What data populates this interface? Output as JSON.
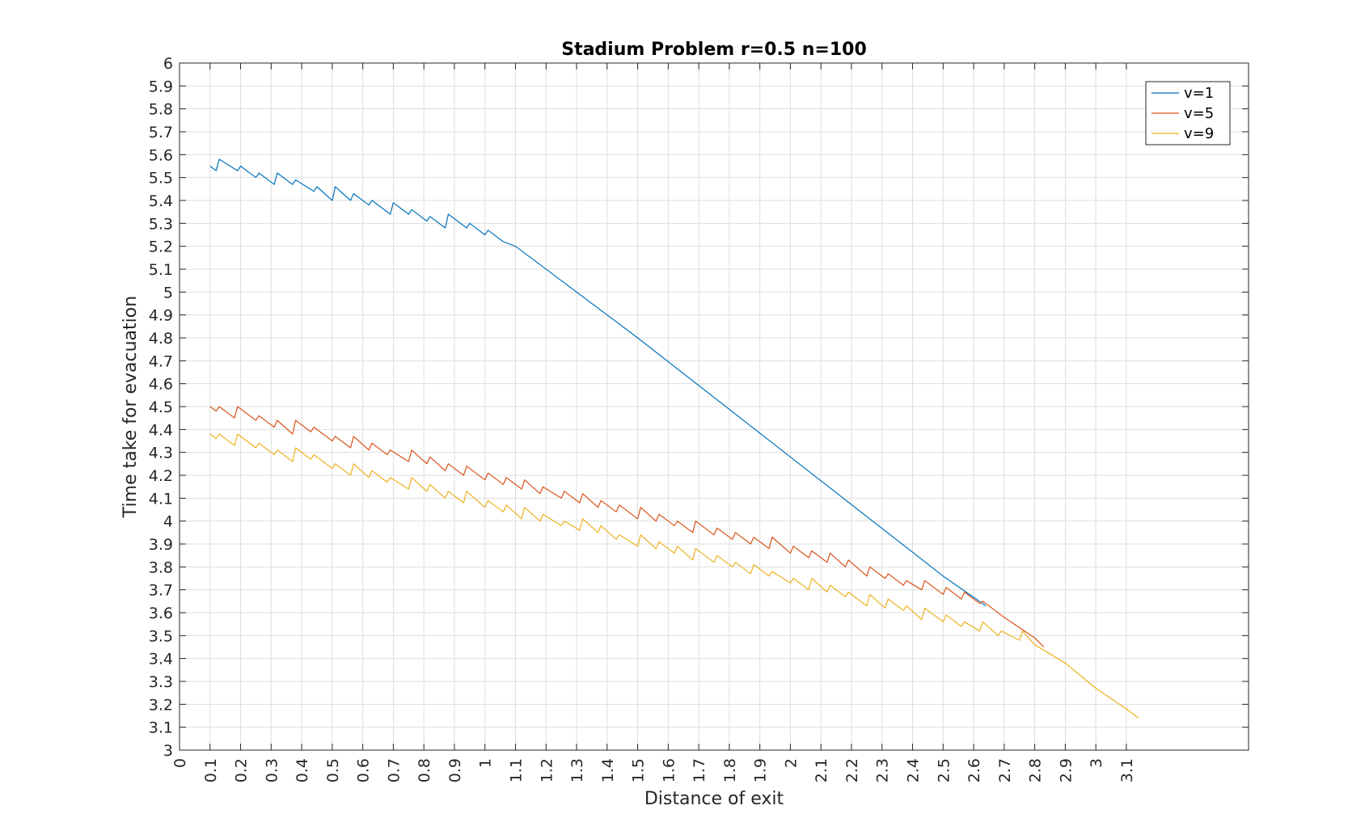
{
  "chart_data": {
    "type": "line",
    "title": "Stadium Problem r=0.5 n=100",
    "xlabel": "Distance of exit",
    "ylabel": "Time take for evacuation",
    "xlim": [
      0,
      3.5
    ],
    "ylim": [
      3,
      6
    ],
    "xticks": [
      "0",
      "0.1",
      "0.2",
      "0.3",
      "0.4",
      "0.5",
      "0.6",
      "0.7",
      "0.8",
      "0.9",
      "1",
      "1.1",
      "1.2",
      "1.3",
      "1.4",
      "1.5",
      "1.6",
      "1.7",
      "1.8",
      "1.9",
      "2",
      "2.1",
      "2.2",
      "2.3",
      "2.4",
      "2.5",
      "2.6",
      "2.7",
      "2.8",
      "2.9",
      "3",
      "3.1"
    ],
    "yticks": [
      "3",
      "3.1",
      "3.2",
      "3.3",
      "3.4",
      "3.5",
      "3.6",
      "3.7",
      "3.8",
      "3.9",
      "4",
      "4.1",
      "4.2",
      "4.3",
      "4.4",
      "4.5",
      "4.6",
      "4.7",
      "4.8",
      "4.9",
      "5",
      "5.1",
      "5.2",
      "5.3",
      "5.4",
      "5.5",
      "5.6",
      "5.7",
      "5.8",
      "5.9",
      "6"
    ],
    "grid": true,
    "legend_position": "top-right",
    "series": [
      {
        "name": "v=1",
        "color": "#0072BD",
        "x": [
          0.1,
          0.12,
          0.13,
          0.19,
          0.2,
          0.25,
          0.26,
          0.31,
          0.32,
          0.37,
          0.38,
          0.44,
          0.45,
          0.5,
          0.51,
          0.56,
          0.57,
          0.62,
          0.63,
          0.69,
          0.7,
          0.75,
          0.76,
          0.81,
          0.82,
          0.87,
          0.88,
          0.94,
          0.95,
          1.0,
          1.01,
          1.06,
          1.1,
          1.5,
          2.0,
          2.5,
          2.64
        ],
        "y": [
          5.55,
          5.53,
          5.58,
          5.53,
          5.55,
          5.5,
          5.52,
          5.47,
          5.52,
          5.47,
          5.49,
          5.44,
          5.46,
          5.4,
          5.46,
          5.4,
          5.43,
          5.38,
          5.4,
          5.34,
          5.39,
          5.34,
          5.36,
          5.31,
          5.33,
          5.28,
          5.34,
          5.28,
          5.3,
          5.25,
          5.27,
          5.22,
          5.2,
          4.8,
          4.28,
          3.76,
          3.63
        ]
      },
      {
        "name": "v=5",
        "color": "#D95319",
        "x": [
          0.1,
          0.12,
          0.13,
          0.18,
          0.19,
          0.25,
          0.26,
          0.31,
          0.32,
          0.37,
          0.38,
          0.43,
          0.44,
          0.5,
          0.51,
          0.56,
          0.57,
          0.62,
          0.63,
          0.68,
          0.69,
          0.75,
          0.76,
          0.81,
          0.82,
          0.87,
          0.88,
          0.93,
          0.94,
          1.0,
          1.01,
          1.06,
          1.07,
          1.12,
          1.13,
          1.18,
          1.19,
          1.25,
          1.26,
          1.31,
          1.32,
          1.37,
          1.38,
          1.43,
          1.44,
          1.5,
          1.51,
          1.56,
          1.57,
          1.62,
          1.63,
          1.68,
          1.69,
          1.75,
          1.76,
          1.81,
          1.82,
          1.87,
          1.88,
          1.93,
          1.94,
          2.0,
          2.01,
          2.06,
          2.07,
          2.12,
          2.13,
          2.18,
          2.19,
          2.25,
          2.26,
          2.31,
          2.32,
          2.37,
          2.38,
          2.43,
          2.44,
          2.5,
          2.51,
          2.56,
          2.57,
          2.62,
          2.63,
          2.7,
          2.8,
          2.83
        ],
        "y": [
          4.5,
          4.48,
          4.5,
          4.45,
          4.5,
          4.44,
          4.46,
          4.41,
          4.44,
          4.38,
          4.44,
          4.39,
          4.41,
          4.35,
          4.37,
          4.32,
          4.37,
          4.31,
          4.34,
          4.29,
          4.31,
          4.26,
          4.31,
          4.25,
          4.28,
          4.22,
          4.25,
          4.2,
          4.24,
          4.18,
          4.21,
          4.16,
          4.19,
          4.14,
          4.18,
          4.12,
          4.15,
          4.1,
          4.13,
          4.08,
          4.12,
          4.06,
          4.09,
          4.04,
          4.07,
          4.01,
          4.06,
          4.0,
          4.03,
          3.98,
          4.0,
          3.95,
          4.0,
          3.94,
          3.97,
          3.92,
          3.95,
          3.9,
          3.93,
          3.88,
          3.93,
          3.86,
          3.89,
          3.84,
          3.87,
          3.82,
          3.86,
          3.8,
          3.83,
          3.76,
          3.8,
          3.75,
          3.77,
          3.72,
          3.74,
          3.7,
          3.74,
          3.68,
          3.71,
          3.66,
          3.69,
          3.64,
          3.65,
          3.58,
          3.49,
          3.45
        ]
      },
      {
        "name": "v=9",
        "color": "#EDB120",
        "x": [
          0.1,
          0.12,
          0.13,
          0.18,
          0.19,
          0.25,
          0.26,
          0.31,
          0.32,
          0.37,
          0.38,
          0.43,
          0.44,
          0.5,
          0.51,
          0.56,
          0.57,
          0.62,
          0.63,
          0.68,
          0.69,
          0.75,
          0.76,
          0.81,
          0.82,
          0.87,
          0.88,
          0.93,
          0.94,
          1.0,
          1.01,
          1.06,
          1.07,
          1.12,
          1.13,
          1.18,
          1.19,
          1.25,
          1.26,
          1.31,
          1.32,
          1.37,
          1.38,
          1.43,
          1.44,
          1.5,
          1.51,
          1.56,
          1.57,
          1.62,
          1.63,
          1.68,
          1.69,
          1.75,
          1.76,
          1.81,
          1.82,
          1.87,
          1.88,
          1.93,
          1.94,
          2.0,
          2.01,
          2.06,
          2.07,
          2.12,
          2.13,
          2.18,
          2.19,
          2.25,
          2.26,
          2.31,
          2.32,
          2.37,
          2.38,
          2.43,
          2.44,
          2.5,
          2.51,
          2.56,
          2.57,
          2.62,
          2.63,
          2.68,
          2.69,
          2.75,
          2.76,
          2.8,
          2.9,
          3.0,
          3.1,
          3.14
        ],
        "y": [
          4.38,
          4.36,
          4.38,
          4.33,
          4.38,
          4.32,
          4.34,
          4.29,
          4.31,
          4.26,
          4.32,
          4.27,
          4.29,
          4.23,
          4.25,
          4.2,
          4.25,
          4.19,
          4.22,
          4.17,
          4.19,
          4.14,
          4.19,
          4.13,
          4.16,
          4.1,
          4.13,
          4.08,
          4.13,
          4.06,
          4.09,
          4.04,
          4.07,
          4.01,
          4.06,
          4.0,
          4.03,
          3.98,
          4.0,
          3.96,
          4.01,
          3.95,
          3.98,
          3.92,
          3.94,
          3.89,
          3.94,
          3.88,
          3.91,
          3.86,
          3.89,
          3.83,
          3.88,
          3.82,
          3.85,
          3.8,
          3.82,
          3.77,
          3.81,
          3.76,
          3.78,
          3.73,
          3.75,
          3.7,
          3.75,
          3.69,
          3.72,
          3.67,
          3.69,
          3.63,
          3.68,
          3.62,
          3.66,
          3.61,
          3.63,
          3.57,
          3.62,
          3.56,
          3.59,
          3.54,
          3.56,
          3.52,
          3.56,
          3.5,
          3.52,
          3.48,
          3.52,
          3.46,
          3.38,
          3.27,
          3.18,
          3.14
        ]
      }
    ]
  }
}
